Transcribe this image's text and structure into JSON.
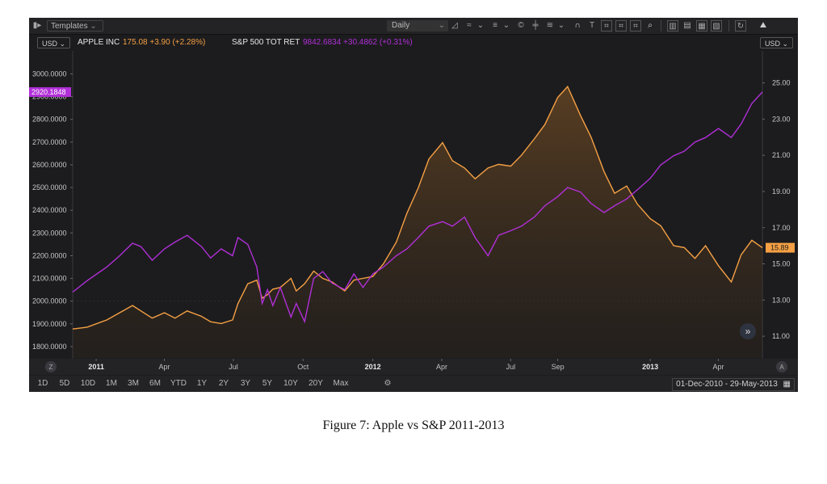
{
  "toolbar": {
    "templates_label": "Templates",
    "interval_label": "Daily"
  },
  "legend": {
    "left_currency": "USD",
    "right_currency": "USD",
    "series1_name": "APPLE INC",
    "series1_value": "175.08 +3.90 (+2.28%)",
    "series2_name": "S&P 500 TOT RET",
    "series2_value": "9842.6834 +30.4862 (+0.31%)"
  },
  "ranges": [
    "1D",
    "5D",
    "10D",
    "1M",
    "3M",
    "6M",
    "YTD",
    "1Y",
    "2Y",
    "3Y",
    "5Y",
    "10Y",
    "20Y",
    "Max"
  ],
  "date_range": "01-Dec-2010  -  29-May-2013",
  "zoom_left_label": "Z",
  "zoom_right_label": "A",
  "colors": {
    "apple": "#f5a044",
    "sp500": "#b12fd8",
    "background": "#1c1c1e"
  },
  "chart_data": {
    "type": "line",
    "title": "Apple vs S&P 2011-2013",
    "x_ticks": [
      "2011",
      "Apr",
      "Jul",
      "Oct",
      "2012",
      "Apr",
      "Jul",
      "Sep",
      "2013",
      "Apr"
    ],
    "x_tick_dates": [
      "2011-01-01",
      "2011-04-01",
      "2011-07-01",
      "2011-10-01",
      "2012-01-01",
      "2012-04-01",
      "2012-07-01",
      "2012-09-01",
      "2013-01-01",
      "2013-04-01"
    ],
    "x_range": [
      "2010-12-01",
      "2013-05-29"
    ],
    "left_axis": {
      "series": "S&P 500 TOT RET",
      "ylim": [
        1750,
        3080
      ],
      "ticks": [
        "3000.0000",
        "2900.0000",
        "2800.0000",
        "2700.0000",
        "2600.0000",
        "2500.0000",
        "2400.0000",
        "2300.0000",
        "2200.0000",
        "2100.0000",
        "2000.0000",
        "1900.0000",
        "1800.0000"
      ],
      "last_value_label": "2920.1848",
      "last_value": 2920.1848
    },
    "right_axis": {
      "series": "APPLE INC",
      "ylim": [
        9.8,
        26.5
      ],
      "ticks": [
        "25.00",
        "23.00",
        "21.00",
        "19.00",
        "17.00",
        "15.00",
        "13.00",
        "11.00"
      ],
      "last_value_label": "15.89",
      "last_value": 15.89
    },
    "series": [
      {
        "name": "S&P 500 TOT RET",
        "axis": "left",
        "style": "line",
        "x": [
          "2010-12-01",
          "2010-12-20",
          "2011-01-15",
          "2011-02-01",
          "2011-02-18",
          "2011-03-01",
          "2011-03-16",
          "2011-04-01",
          "2011-04-15",
          "2011-05-01",
          "2011-05-20",
          "2011-06-01",
          "2011-06-15",
          "2011-06-30",
          "2011-07-07",
          "2011-07-20",
          "2011-08-01",
          "2011-08-08",
          "2011-08-15",
          "2011-08-22",
          "2011-09-01",
          "2011-09-15",
          "2011-09-22",
          "2011-10-03",
          "2011-10-15",
          "2011-10-27",
          "2011-11-08",
          "2011-11-25",
          "2011-12-07",
          "2011-12-19",
          "2012-01-01",
          "2012-01-15",
          "2012-02-01",
          "2012-02-15",
          "2012-03-01",
          "2012-03-15",
          "2012-04-02",
          "2012-04-15",
          "2012-05-01",
          "2012-05-15",
          "2012-06-01",
          "2012-06-15",
          "2012-07-01",
          "2012-07-15",
          "2012-08-01",
          "2012-08-15",
          "2012-09-01",
          "2012-09-14",
          "2012-10-01",
          "2012-10-15",
          "2012-11-01",
          "2012-11-15",
          "2012-12-01",
          "2012-12-15",
          "2013-01-01",
          "2013-01-15",
          "2013-02-01",
          "2013-02-15",
          "2013-03-01",
          "2013-03-15",
          "2013-04-01",
          "2013-04-18",
          "2013-05-01",
          "2013-05-15",
          "2013-05-29"
        ],
        "values": [
          2040,
          2090,
          2150,
          2200,
          2255,
          2240,
          2180,
          2230,
          2260,
          2290,
          2240,
          2190,
          2230,
          2200,
          2280,
          2250,
          2150,
          1990,
          2050,
          1980,
          2060,
          1930,
          1990,
          1910,
          2100,
          2130,
          2080,
          2050,
          2120,
          2060,
          2120,
          2150,
          2200,
          2230,
          2280,
          2330,
          2350,
          2330,
          2370,
          2280,
          2200,
          2290,
          2310,
          2330,
          2370,
          2420,
          2460,
          2500,
          2480,
          2430,
          2390,
          2420,
          2450,
          2490,
          2540,
          2600,
          2640,
          2660,
          2700,
          2720,
          2760,
          2720,
          2780,
          2870,
          2920.1848
        ]
      },
      {
        "name": "APPLE INC",
        "axis": "right",
        "style": "area",
        "x": [
          "2010-12-01",
          "2010-12-20",
          "2011-01-15",
          "2011-02-01",
          "2011-02-18",
          "2011-03-01",
          "2011-03-16",
          "2011-04-01",
          "2011-04-15",
          "2011-05-01",
          "2011-05-20",
          "2011-06-01",
          "2011-06-15",
          "2011-06-30",
          "2011-07-07",
          "2011-07-20",
          "2011-08-01",
          "2011-08-08",
          "2011-08-15",
          "2011-08-22",
          "2011-09-01",
          "2011-09-15",
          "2011-09-22",
          "2011-10-03",
          "2011-10-15",
          "2011-10-27",
          "2011-11-08",
          "2011-11-25",
          "2011-12-07",
          "2011-12-19",
          "2012-01-01",
          "2012-01-15",
          "2012-02-01",
          "2012-02-15",
          "2012-03-01",
          "2012-03-15",
          "2012-04-02",
          "2012-04-15",
          "2012-05-01",
          "2012-05-15",
          "2012-06-01",
          "2012-06-15",
          "2012-07-01",
          "2012-07-15",
          "2012-08-01",
          "2012-08-15",
          "2012-09-01",
          "2012-09-14",
          "2012-10-01",
          "2012-10-15",
          "2012-11-01",
          "2012-11-15",
          "2012-12-01",
          "2012-12-15",
          "2013-01-01",
          "2013-01-15",
          "2013-02-01",
          "2013-02-15",
          "2013-03-01",
          "2013-03-15",
          "2013-04-01",
          "2013-04-18",
          "2013-05-01",
          "2013-05-15",
          "2013-05-29"
        ],
        "values": [
          11.4,
          11.5,
          11.9,
          12.3,
          12.7,
          12.4,
          12.0,
          12.3,
          12.0,
          12.4,
          12.1,
          11.8,
          11.7,
          11.9,
          12.8,
          13.9,
          14.1,
          13.1,
          13.3,
          13.6,
          13.7,
          14.2,
          13.5,
          13.9,
          14.6,
          14.2,
          14.0,
          13.5,
          14.1,
          14.2,
          14.3,
          15.0,
          16.2,
          17.8,
          19.2,
          20.8,
          21.7,
          20.7,
          20.3,
          19.7,
          20.3,
          20.5,
          20.4,
          21.0,
          21.9,
          22.7,
          24.2,
          24.8,
          23.2,
          22.0,
          20.1,
          18.9,
          19.3,
          18.3,
          17.5,
          17.1,
          16.0,
          15.9,
          15.3,
          16.0,
          14.9,
          14.0,
          15.5,
          16.3,
          15.89
        ]
      }
    ]
  },
  "caption": "Figure 7: Apple vs S&P 2011-2013"
}
